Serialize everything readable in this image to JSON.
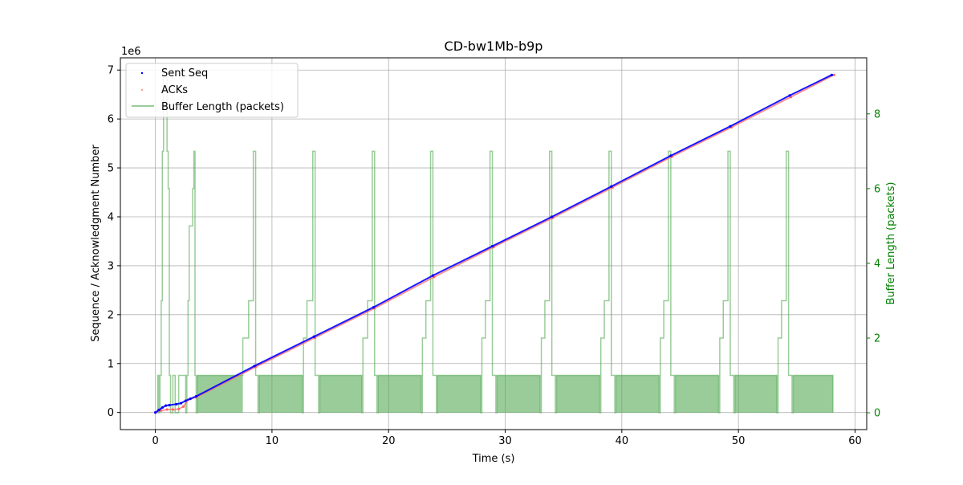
{
  "chart_data": {
    "type": "line",
    "title": "CD-bw1Mb-b9p",
    "xlabel": "Time (s)",
    "ylabel_left": "Sequence / Acknowledgment Number",
    "ylabel_right": "Buffer Length (packets)",
    "y_left_multiplier": "1e6",
    "xlim": [
      -3,
      61
    ],
    "ylim_left": [
      -0.35,
      7.25
    ],
    "ylim_right": [
      -0.45,
      9.5
    ],
    "x_ticks": [
      0,
      10,
      20,
      30,
      40,
      50,
      60
    ],
    "x_tick_labels": [
      "0",
      "10",
      "20",
      "30",
      "40",
      "50",
      "60"
    ],
    "y_left_ticks": [
      0,
      1,
      2,
      3,
      4,
      5,
      6,
      7
    ],
    "y_left_tick_labels": [
      "0",
      "1",
      "2",
      "3",
      "4",
      "5",
      "6",
      "7"
    ],
    "y_right_ticks": [
      0,
      2,
      4,
      6,
      8
    ],
    "y_right_tick_labels": [
      "0",
      "2",
      "4",
      "6",
      "8"
    ],
    "grid": true,
    "legend_position": "top-left",
    "series": [
      {
        "name": "Sent Seq",
        "axis": "left",
        "style": "scatter",
        "color": "#0000ff",
        "x": [
          0,
          0.3,
          0.6,
          0.9,
          1.2,
          1.8,
          2.2,
          2.6,
          3.0,
          3.5,
          8.5,
          13.6,
          18.7,
          23.8,
          28.9,
          34.0,
          39.1,
          44.2,
          49.3,
          54.4,
          58.0
        ],
        "y": [
          0,
          0.05,
          0.1,
          0.14,
          0.15,
          0.17,
          0.19,
          0.24,
          0.28,
          0.33,
          0.95,
          1.55,
          2.15,
          2.8,
          3.4,
          4.0,
          4.62,
          5.25,
          5.85,
          6.48,
          6.9
        ]
      },
      {
        "name": "ACKs",
        "axis": "left",
        "style": "scatter",
        "color": "#ff6666",
        "x": [
          0,
          0.5,
          1.0,
          1.5,
          2.0,
          2.4,
          2.8,
          3.5,
          8.6,
          13.7,
          18.8,
          23.9,
          29.0,
          34.1,
          39.2,
          44.3,
          49.4,
          54.5,
          58.2
        ],
        "y": [
          0,
          0.04,
          0.06,
          0.06,
          0.07,
          0.12,
          0.26,
          0.31,
          0.93,
          1.53,
          2.13,
          2.77,
          3.38,
          3.98,
          4.6,
          5.23,
          5.83,
          6.45,
          6.9
        ]
      },
      {
        "name": "Buffer Length (packets)",
        "axis": "right",
        "style": "line",
        "color": "#55aa55",
        "steps": [
          [
            0,
            0
          ],
          [
            0.2,
            1
          ],
          [
            0.3,
            0
          ],
          [
            0.4,
            1
          ],
          [
            0.5,
            3
          ],
          [
            0.6,
            7
          ],
          [
            0.7,
            9
          ],
          [
            1.0,
            7
          ],
          [
            1.1,
            6
          ],
          [
            1.2,
            1
          ],
          [
            1.3,
            0
          ],
          [
            1.5,
            1
          ],
          [
            1.7,
            0
          ],
          [
            2.0,
            1
          ],
          [
            2.6,
            0
          ],
          [
            2.7,
            1
          ],
          [
            2.8,
            3
          ],
          [
            2.9,
            5
          ],
          [
            3.2,
            6
          ],
          [
            3.3,
            7
          ],
          [
            3.4,
            1
          ],
          [
            3.5,
            0
          ],
          [
            3.6,
            1
          ],
          [
            7.5,
            2
          ],
          [
            8.0,
            3
          ],
          [
            8.4,
            7
          ],
          [
            8.6,
            1
          ],
          [
            8.8,
            0
          ],
          [
            8.9,
            1
          ],
          [
            12.6,
            0
          ],
          [
            12.7,
            2
          ],
          [
            13.0,
            3
          ],
          [
            13.5,
            7
          ],
          [
            13.7,
            1
          ],
          [
            14.0,
            0
          ],
          [
            14.1,
            1
          ],
          [
            17.7,
            0
          ],
          [
            17.8,
            2
          ],
          [
            18.2,
            3
          ],
          [
            18.6,
            7
          ],
          [
            18.8,
            1
          ],
          [
            19.0,
            0
          ],
          [
            19.1,
            1
          ],
          [
            22.8,
            0
          ],
          [
            22.9,
            2
          ],
          [
            23.2,
            3
          ],
          [
            23.6,
            7
          ],
          [
            23.8,
            1
          ],
          [
            24.1,
            0
          ],
          [
            24.2,
            1
          ],
          [
            27.9,
            0
          ],
          [
            28.0,
            2
          ],
          [
            28.3,
            3
          ],
          [
            28.7,
            7
          ],
          [
            28.9,
            1
          ],
          [
            29.2,
            0
          ],
          [
            29.3,
            1
          ],
          [
            33.0,
            0
          ],
          [
            33.1,
            2
          ],
          [
            33.4,
            3
          ],
          [
            33.8,
            7
          ],
          [
            34.0,
            1
          ],
          [
            34.3,
            0
          ],
          [
            34.4,
            1
          ],
          [
            38.1,
            0
          ],
          [
            38.2,
            2
          ],
          [
            38.5,
            3
          ],
          [
            38.9,
            7
          ],
          [
            39.1,
            1
          ],
          [
            39.4,
            0
          ],
          [
            39.5,
            1
          ],
          [
            43.2,
            0
          ],
          [
            43.3,
            2
          ],
          [
            43.6,
            3
          ],
          [
            44.0,
            7
          ],
          [
            44.2,
            1
          ],
          [
            44.5,
            0
          ],
          [
            44.6,
            1
          ],
          [
            48.3,
            0
          ],
          [
            48.4,
            2
          ],
          [
            48.7,
            3
          ],
          [
            49.1,
            7
          ],
          [
            49.3,
            1
          ],
          [
            49.6,
            0
          ],
          [
            49.7,
            1
          ],
          [
            53.3,
            0
          ],
          [
            53.4,
            2
          ],
          [
            53.7,
            3
          ],
          [
            54.1,
            7
          ],
          [
            54.3,
            1
          ],
          [
            54.6,
            0
          ],
          [
            54.7,
            1
          ],
          [
            58.1,
            0
          ]
        ]
      }
    ]
  }
}
